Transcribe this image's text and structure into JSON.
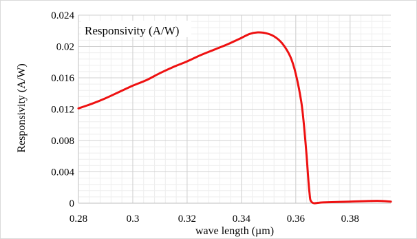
{
  "chart_data": {
    "type": "line",
    "title": "",
    "xlabel": "wave length (µm)",
    "ylabel": "Responsivity (A/W)",
    "xlim": [
      0.28,
      0.395
    ],
    "ylim": [
      0,
      0.024
    ],
    "x_ticks": [
      "0.28",
      "0.3",
      "0.32",
      "0.34",
      "0.36",
      "0.38"
    ],
    "y_ticks": [
      "0",
      "0.004",
      "0.008",
      "0.012",
      "0.016",
      "0.02",
      "0.024"
    ],
    "x_tick_values": [
      0.28,
      0.3,
      0.32,
      0.34,
      0.36,
      0.38
    ],
    "y_tick_values": [
      0,
      0.004,
      0.008,
      0.012,
      0.016,
      0.02,
      0.024
    ],
    "grid": true,
    "legend_position": "top-left",
    "series": [
      {
        "name": "Responsivity (A/W)",
        "color": "#ee1111",
        "x": [
          0.28,
          0.285,
          0.29,
          0.295,
          0.3,
          0.305,
          0.31,
          0.315,
          0.32,
          0.325,
          0.33,
          0.335,
          0.34,
          0.343,
          0.346,
          0.349,
          0.352,
          0.355,
          0.358,
          0.36,
          0.362,
          0.363,
          0.364,
          0.365,
          0.366,
          0.37,
          0.38,
          0.39,
          0.395
        ],
        "y": [
          0.0121,
          0.0127,
          0.0134,
          0.0142,
          0.015,
          0.0157,
          0.0166,
          0.0174,
          0.0181,
          0.0189,
          0.0196,
          0.0203,
          0.0211,
          0.0216,
          0.0218,
          0.0217,
          0.0213,
          0.0204,
          0.0187,
          0.0165,
          0.013,
          0.01,
          0.006,
          0.0015,
          0.0001,
          0.0001,
          0.0002,
          0.0003,
          0.0002
        ]
      }
    ]
  }
}
